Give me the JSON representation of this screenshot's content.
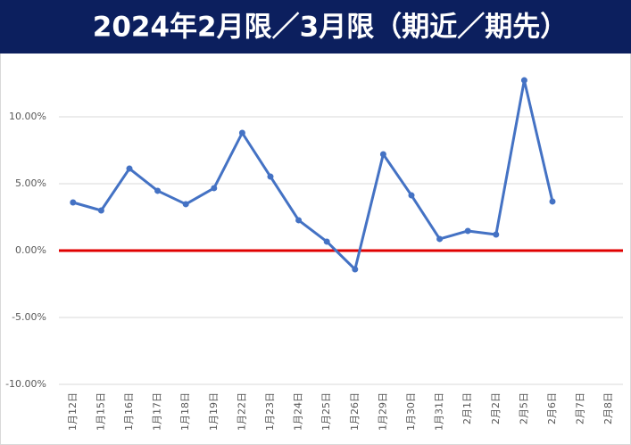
{
  "chart_data": {
    "type": "line",
    "title": "2024年2月限／3月限（期近／期先）",
    "categories": [
      "1月12日",
      "1月15日",
      "1月16日",
      "1月17日",
      "1月18日",
      "1月19日",
      "1月22日",
      "1月23日",
      "1月24日",
      "1月25日",
      "1月26日",
      "1月29日",
      "1月30日",
      "1月31日",
      "2月1日",
      "2月2日",
      "2月5日",
      "2月6日",
      "2月7日",
      "2月8日"
    ],
    "values": [
      3.6,
      3.0,
      6.13,
      4.47,
      3.47,
      4.67,
      8.8,
      5.53,
      2.27,
      0.67,
      -1.4,
      7.2,
      4.13,
      0.87,
      1.47,
      1.2,
      12.73,
      3.67,
      null,
      null
    ],
    "color": "#4472c4",
    "ylim": [
      -10,
      14.6
    ],
    "yticks": [
      {
        "value": -10,
        "label": "-10.00%"
      },
      {
        "value": -5,
        "label": "-5.00%"
      },
      {
        "value": 0,
        "label": "0.00%"
      },
      {
        "value": 5,
        "label": "5.00%"
      },
      {
        "value": 10,
        "label": "10.00%"
      }
    ],
    "grid": true,
    "reference_line": {
      "value": 0,
      "color": "#e00000"
    }
  }
}
